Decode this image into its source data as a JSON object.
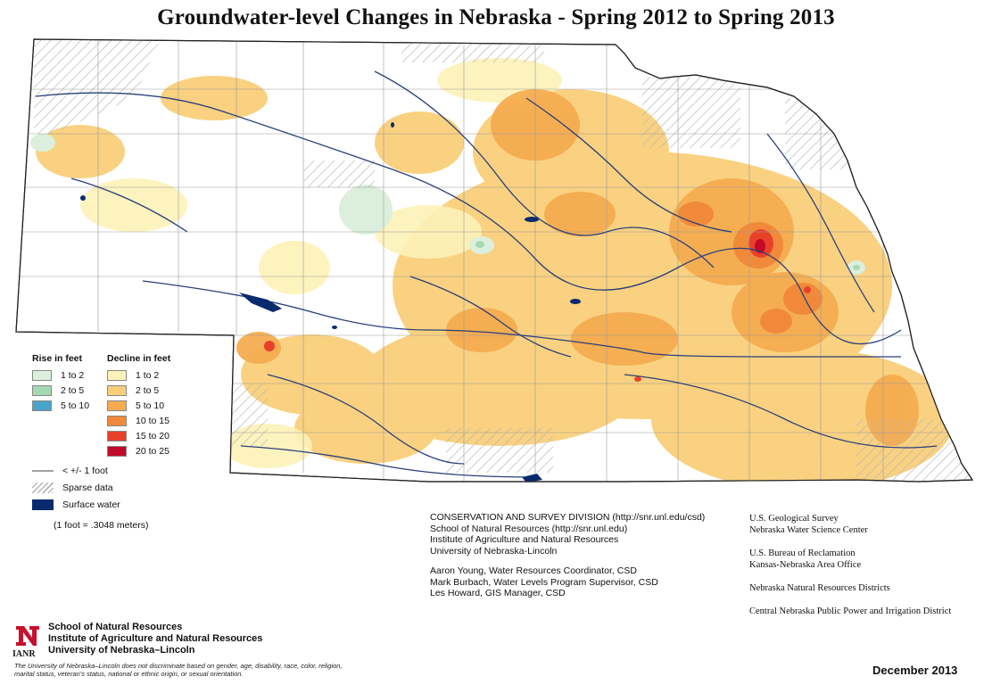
{
  "title": "Groundwater-level Changes in Nebraska - Spring 2012 to Spring 2013",
  "legend": {
    "rise_heading": "Rise in feet",
    "rise": [
      {
        "label": "1 to 2",
        "color": "#dcefdc"
      },
      {
        "label": "2 to 5",
        "color": "#a6d8b4"
      },
      {
        "label": "5 to 10",
        "color": "#4aa3c8"
      }
    ],
    "decline_heading": "Decline in feet",
    "decline": [
      {
        "label": "1 to 2",
        "color": "#fdf2b8"
      },
      {
        "label": "2 to 5",
        "color": "#f9cf7a"
      },
      {
        "label": "5 to 10",
        "color": "#f5ac50"
      },
      {
        "label": "10 to 15",
        "color": "#f08a3a"
      },
      {
        "label": "15 to 20",
        "color": "#e8412a"
      },
      {
        "label": "20 to 25",
        "color": "#c00a2a"
      }
    ],
    "small_change": "< +/- 1 foot",
    "sparse": "Sparse data",
    "surface_water": "Surface water",
    "surface_water_color": "#0a2a6e",
    "conversion": "(1 foot = .3048 meters)"
  },
  "credits": {
    "org_lines": [
      "CONSERVATION AND SURVEY DIVISION (http://snr.unl.edu/csd)",
      "School of Natural Resources (http://snr.unl.edu)",
      "Institute of Agriculture and Natural Resources",
      "University of Nebraska-Lincoln"
    ],
    "people": [
      "Aaron Young, Water Resources Coordinator, CSD",
      "Mark Burbach, Water Levels Program Supervisor, CSD",
      "Les Howard, GIS Manager, CSD"
    ]
  },
  "partners": [
    {
      "line1": "U.S. Geological Survey",
      "line2": "Nebraska Water Science Center"
    },
    {
      "line1": "U.S. Bureau of Reclamation",
      "line2": "Kansas-Nebraska Area Office"
    },
    {
      "line1": "Nebraska Natural Resources Districts",
      "line2": ""
    },
    {
      "line1": "Central Nebraska Public Power and Irrigation District",
      "line2": ""
    }
  ],
  "logo": {
    "ianr": "IANR",
    "brand_color": "#c8102e",
    "lines": [
      "School of Natural Resources",
      "Institute of Agriculture and Natural Resources",
      "University of Nebraska–Lincoln"
    ]
  },
  "disclaimer": "The University of Nebraska–Lincoln does not discriminate based on gender, age, disability, race, color, religion, marital status, veteran's status, national or ethnic origin, or sexual orientation.",
  "date": "December 2013"
}
